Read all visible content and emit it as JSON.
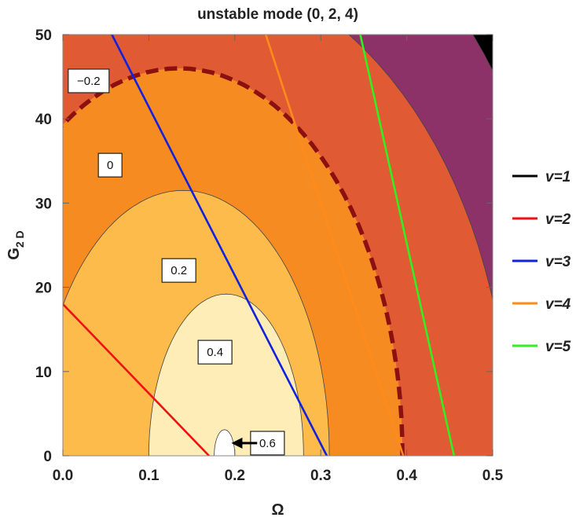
{
  "chart_data": {
    "type": "contour",
    "title": "unstable mode  (0, 2, 4)",
    "xlabel": "Ω",
    "ylabel": "G",
    "ylabel_sub": "2 D",
    "xlim": [
      0.0,
      0.5
    ],
    "ylim": [
      0,
      50
    ],
    "xticks": [
      "0.0",
      "0.1",
      "0.2",
      "0.3",
      "0.4",
      "0.5"
    ],
    "yticks": [
      "0",
      "10",
      "20",
      "30",
      "40",
      "50"
    ],
    "grid": false,
    "legend_position": "right",
    "colors": {
      "level_lt_-0.2": "#8d3169",
      "level_-0.2_0": "#e05a33",
      "level_0_0.2": "#f68b22",
      "level_0.2_0.4": "#fcbb4b",
      "level_0.4_0.6": "#ffedb8",
      "level_gt_0.6": "#ffffff",
      "level_lowest": "#000000",
      "zero_contour": "#8b1010"
    },
    "contour_labels": [
      {
        "text": "−0.2",
        "x": 0.03,
        "y": 44.5
      },
      {
        "text": "0",
        "x": 0.055,
        "y": 34.5
      },
      {
        "text": "0.2",
        "x": 0.135,
        "y": 22.0
      },
      {
        "text": "0.4",
        "x": 0.177,
        "y": 12.3
      },
      {
        "text": "0.6",
        "x": 0.238,
        "y": 1.5
      }
    ],
    "series": [
      {
        "name": "v=1",
        "color": "#000000",
        "x": [],
        "y": []
      },
      {
        "name": "v=2",
        "color": "#ee1111",
        "x": [
          0.0,
          0.17
        ],
        "y": [
          18.0,
          0.0
        ]
      },
      {
        "name": "v=3",
        "color": "#1122dd",
        "x": [
          0.057,
          0.307
        ],
        "y": [
          50.0,
          0.0
        ]
      },
      {
        "name": "v=4",
        "color": "#ff8c1a",
        "x": [
          0.236,
          0.396
        ],
        "y": [
          50.0,
          0.0
        ]
      },
      {
        "name": "v=5",
        "color": "#33ee22",
        "x": [
          0.346,
          0.455
        ],
        "y": [
          50.0,
          0.0
        ]
      }
    ]
  }
}
